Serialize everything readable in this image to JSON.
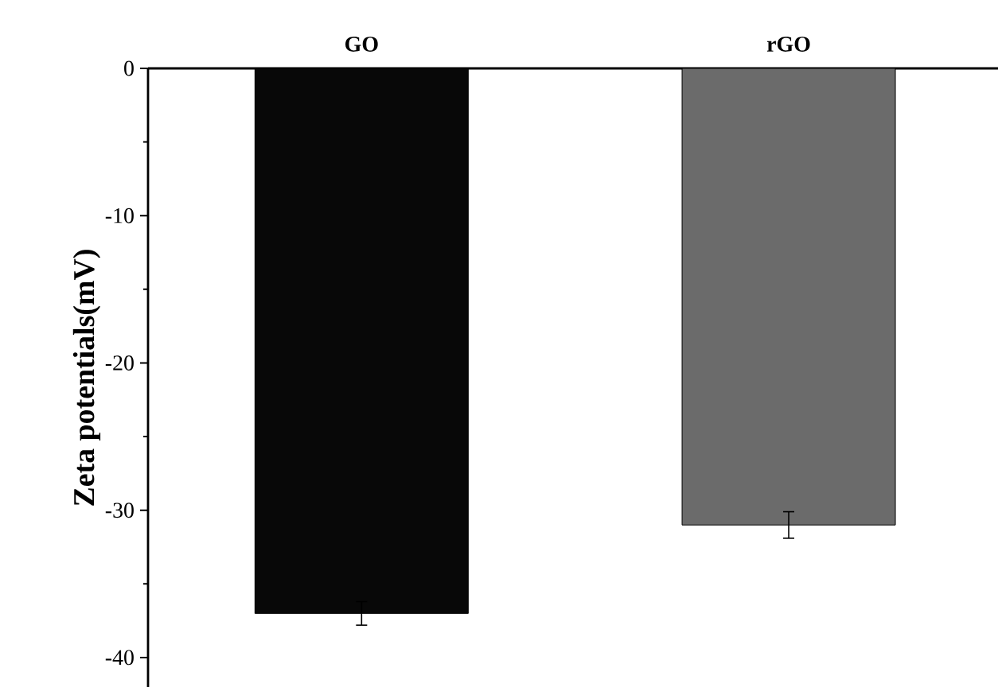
{
  "chart_data": {
    "type": "bar",
    "categories": [
      "GO",
      "rGO"
    ],
    "ylabel": "Zeta potentials(mV)",
    "values": [
      -37,
      -31
    ],
    "errors": [
      0.8,
      0.9
    ],
    "colors": [
      "#080808",
      "#6b6b6b"
    ],
    "ylim": [
      -42,
      0
    ],
    "yticks": [
      -40,
      -30,
      -20,
      -10,
      0
    ]
  }
}
